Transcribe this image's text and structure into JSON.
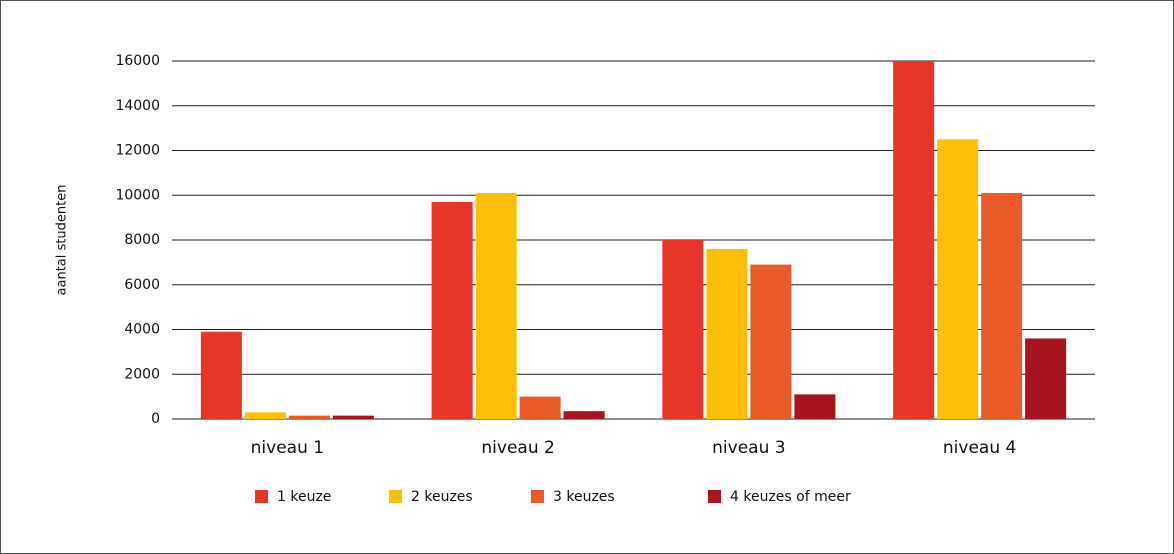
{
  "chart_data": {
    "type": "bar",
    "ylabel": "aantal studenten",
    "categories": [
      "niveau 1",
      "niveau 2",
      "niveau 3",
      "niveau 4"
    ],
    "series": [
      {
        "name": "1 keuze",
        "color": "#e63529",
        "values": [
          3900,
          9700,
          8000,
          16000
        ]
      },
      {
        "name": "2 keuzes",
        "color": "#fbbf0a",
        "values": [
          300,
          10100,
          7600,
          12500
        ]
      },
      {
        "name": "3 keuzes",
        "color": "#e85a27",
        "values": [
          150,
          1000,
          6900,
          10100
        ]
      },
      {
        "name": "4 keuzes of meer",
        "color": "#a8141e",
        "values": [
          150,
          350,
          1100,
          3600
        ]
      }
    ],
    "ylim": [
      0,
      16000
    ],
    "yticks": [
      0,
      2000,
      4000,
      6000,
      8000,
      10000,
      12000,
      14000,
      16000
    ],
    "grid": true
  }
}
